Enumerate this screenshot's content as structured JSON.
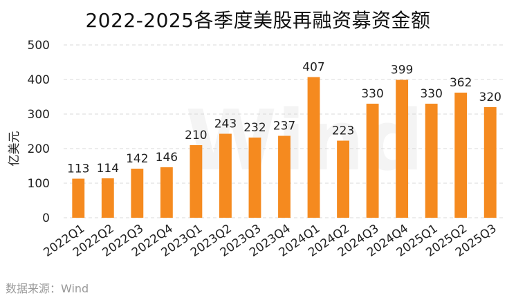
{
  "title": "2022-2025各季度美股再融资募资金额",
  "source": "数据来源：Wind",
  "watermark": "Wind",
  "chart_data": {
    "type": "bar",
    "title": "2022-2025各季度美股再融资募资金额",
    "xlabel": "",
    "ylabel": "亿美元",
    "ylim": [
      0,
      500
    ],
    "yticks": [
      0,
      100,
      200,
      300,
      400,
      500
    ],
    "grid": true,
    "legend": "none",
    "bar_color": "#f58a1f",
    "categories": [
      "2022Q1",
      "2022Q2",
      "2022Q3",
      "2022Q4",
      "2023Q1",
      "2023Q2",
      "2023Q3",
      "2023Q4",
      "2024Q1",
      "2024Q2",
      "2024Q3",
      "2024Q4",
      "2025Q1",
      "2025Q2",
      "2025Q3"
    ],
    "values": [
      113,
      114,
      142,
      146,
      210,
      243,
      232,
      237,
      407,
      223,
      330,
      399,
      330,
      362,
      320
    ]
  }
}
